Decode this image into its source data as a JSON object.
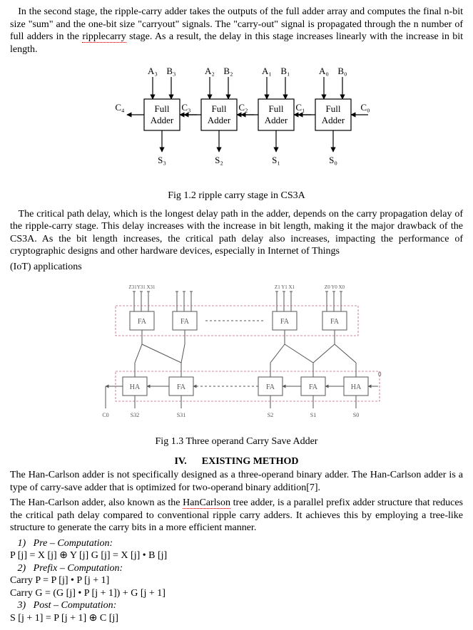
{
  "para1": {
    "t1": "In the second stage, the ripple-carry adder takes the outputs of the full adder array and computes the final n-bit size \"sum\" and the one-bit size \"carryout\" signals. The \"carry-out\" signal is propagated through the n number of full adders in the ",
    "rw1": "ripplecarry",
    "t2": " stage. As a result, the delay in this stage increases linearly with the increase in bit length."
  },
  "fig12": {
    "caption": "Fig 1.2 ripple carry stage in CS3A",
    "box_label": "Full\nAdder",
    "top_labels_a": [
      "A₃",
      "A₂",
      "A₁",
      "A₀"
    ],
    "top_labels_b": [
      "B₃",
      "B₂",
      "B₁",
      "B₀"
    ],
    "c_labels_left": [
      "C₄",
      "C₃",
      "C₂",
      "C₁",
      "C₀"
    ],
    "bottom_labels": [
      "S₃",
      "S₂",
      "S₁",
      "S₀"
    ],
    "colors": {
      "stroke": "#000000",
      "text": "#000000",
      "bg": "#ffffff"
    }
  },
  "para2": "The critical path delay, which is the longest delay path in the adder, depends on the carry propagation delay of the ripple-carry stage. This delay increases with the increase in bit length, making it the major drawback of the CS3A. As the bit length increases, the critical path delay also increases, impacting the performance of cryptographic designs and other hardware devices, especially in Internet of Things",
  "para2_tail": "(IoT) applications",
  "fig13": {
    "caption": "Fig 1.3 Three operand Carry Save Adder",
    "fa_label": "FA",
    "ha_label": "HA",
    "top_group_labels": [
      "Z31Y31 X31",
      "",
      "Z1 Y1 X1",
      "Z0 Y0 X0"
    ],
    "bottom_labels": [
      "C0",
      "S32",
      "S31",
      "S2",
      "S1",
      "S0"
    ],
    "right_label": "0",
    "colors": {
      "stroke": "#555",
      "dash": "#c06080",
      "text": "#555",
      "bg": "#ffffff"
    }
  },
  "section4": {
    "num": "IV.",
    "title": "EXISTING METHOD"
  },
  "para3": "The Han-Carlson adder is not specifically designed as a three-operand binary adder. The Han-Carlson adder is a type of carry-save adder that is optimized for two-operand binary addition[7].",
  "para4": {
    "t1": "The Han-Carlson adder, also known as the ",
    "rw1": "HanCarlson",
    "t2": " tree adder, is a parallel prefix adder structure that reduces the critical path delay compared to conventional ripple carry adders. It achieves this by employing a tree-like structure to generate the carry bits in a more efficient manner."
  },
  "steps": {
    "s1_num": "1)",
    "s1_label": "Pre – Computation:",
    "s1_eq": "P [j] = X [j] ⊕ Y [j] G [j] = X [j] • B [j]",
    "s2_num": "2)",
    "s2_label": "Prefix – Computation:",
    "s2_eq1": "Carry P = P [j] • P [j + 1]",
    "s2_eq2": "Carry G = (G [j] • P [j + 1]) + G [j + 1]",
    "s3_num": "3)",
    "s3_label": "Post – Computation:",
    "s3_eq": "S [j + 1] = P [j + 1] ⊕ C [j]"
  }
}
